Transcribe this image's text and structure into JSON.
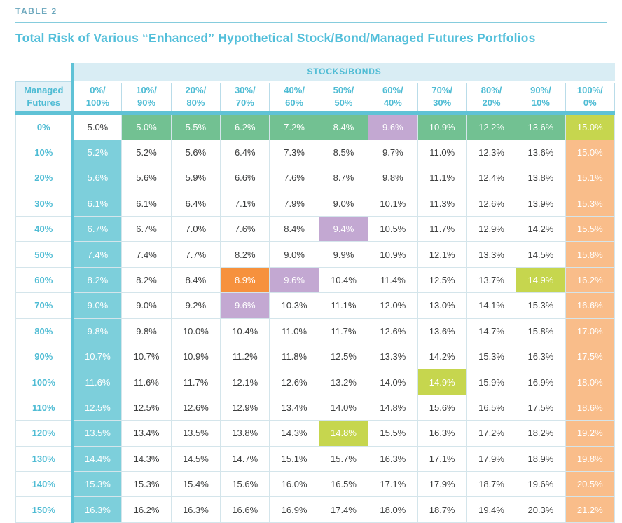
{
  "page": {
    "label": "TABLE 2",
    "title": "Total Risk of Various “Enhanced” Hypothetical Stock/Bond/Managed Futures Portfolios"
  },
  "colors": {
    "accent_teal": "#5fc2d6",
    "header_text": "#4fbcd4",
    "title_text": "#53bfda",
    "band_bg": "#d9edf4",
    "corner_bg": "#e3f1f7",
    "cell_teal": "#7dcfdb",
    "cell_green": "#72c192",
    "cell_lime": "#c6d64e",
    "cell_purple": "#c3a8d2",
    "cell_orange": "#f6913d",
    "cell_peach": "#f9bd8a"
  },
  "table": {
    "group_header": "STOCKS/BONDS",
    "corner_label": [
      "Managed",
      "Futures"
    ],
    "col_headers": [
      [
        "0%/",
        "100%"
      ],
      [
        "10%/",
        "90%"
      ],
      [
        "20%/",
        "80%"
      ],
      [
        "30%/",
        "70%"
      ],
      [
        "40%/",
        "60%"
      ],
      [
        "50%/",
        "50%"
      ],
      [
        "60%/",
        "40%"
      ],
      [
        "70%/",
        "30%"
      ],
      [
        "80%/",
        "20%"
      ],
      [
        "90%/",
        "10%"
      ],
      [
        "100%/",
        "0%"
      ]
    ],
    "rows": [
      {
        "label": "0%",
        "values": [
          "5.0%",
          "5.0%",
          "5.5%",
          "6.2%",
          "7.2%",
          "8.4%",
          "9.6%",
          "10.9%",
          "12.2%",
          "13.6%",
          "15.0%"
        ],
        "styles": [
          "plain",
          "green",
          "green",
          "green",
          "green",
          "green",
          "purple",
          "green",
          "green",
          "green",
          "lime"
        ]
      },
      {
        "label": "10%",
        "values": [
          "5.2%",
          "5.2%",
          "5.6%",
          "6.4%",
          "7.3%",
          "8.5%",
          "9.7%",
          "11.0%",
          "12.3%",
          "13.6%",
          "15.0%"
        ],
        "styles": [
          "teal",
          "plain",
          "plain",
          "plain",
          "plain",
          "plain",
          "plain",
          "plain",
          "plain",
          "plain",
          "peach"
        ]
      },
      {
        "label": "20%",
        "values": [
          "5.6%",
          "5.6%",
          "5.9%",
          "6.6%",
          "7.6%",
          "8.7%",
          "9.8%",
          "11.1%",
          "12.4%",
          "13.8%",
          "15.1%"
        ],
        "styles": [
          "teal",
          "plain",
          "plain",
          "plain",
          "plain",
          "plain",
          "plain",
          "plain",
          "plain",
          "plain",
          "peach"
        ]
      },
      {
        "label": "30%",
        "values": [
          "6.1%",
          "6.1%",
          "6.4%",
          "7.1%",
          "7.9%",
          "9.0%",
          "10.1%",
          "11.3%",
          "12.6%",
          "13.9%",
          "15.3%"
        ],
        "styles": [
          "teal",
          "plain",
          "plain",
          "plain",
          "plain",
          "plain",
          "plain",
          "plain",
          "plain",
          "plain",
          "peach"
        ]
      },
      {
        "label": "40%",
        "values": [
          "6.7%",
          "6.7%",
          "7.0%",
          "7.6%",
          "8.4%",
          "9.4%",
          "10.5%",
          "11.7%",
          "12.9%",
          "14.2%",
          "15.5%"
        ],
        "styles": [
          "teal",
          "plain",
          "plain",
          "plain",
          "plain",
          "purple",
          "plain",
          "plain",
          "plain",
          "plain",
          "peach"
        ]
      },
      {
        "label": "50%",
        "values": [
          "7.4%",
          "7.4%",
          "7.7%",
          "8.2%",
          "9.0%",
          "9.9%",
          "10.9%",
          "12.1%",
          "13.3%",
          "14.5%",
          "15.8%"
        ],
        "styles": [
          "teal",
          "plain",
          "plain",
          "plain",
          "plain",
          "plain",
          "plain",
          "plain",
          "plain",
          "plain",
          "peach"
        ]
      },
      {
        "label": "60%",
        "values": [
          "8.2%",
          "8.2%",
          "8.4%",
          "8.9%",
          "9.6%",
          "10.4%",
          "11.4%",
          "12.5%",
          "13.7%",
          "14.9%",
          "16.2%"
        ],
        "styles": [
          "teal",
          "plain",
          "plain",
          "orange",
          "purple",
          "plain",
          "plain",
          "plain",
          "plain",
          "lime",
          "peach"
        ]
      },
      {
        "label": "70%",
        "values": [
          "9.0%",
          "9.0%",
          "9.2%",
          "9.6%",
          "10.3%",
          "11.1%",
          "12.0%",
          "13.0%",
          "14.1%",
          "15.3%",
          "16.6%"
        ],
        "styles": [
          "teal",
          "plain",
          "plain",
          "purple",
          "plain",
          "plain",
          "plain",
          "plain",
          "plain",
          "plain",
          "peach"
        ]
      },
      {
        "label": "80%",
        "values": [
          "9.8%",
          "9.8%",
          "10.0%",
          "10.4%",
          "11.0%",
          "11.7%",
          "12.6%",
          "13.6%",
          "14.7%",
          "15.8%",
          "17.0%"
        ],
        "styles": [
          "teal",
          "plain",
          "plain",
          "plain",
          "plain",
          "plain",
          "plain",
          "plain",
          "plain",
          "plain",
          "peach"
        ]
      },
      {
        "label": "90%",
        "values": [
          "10.7%",
          "10.7%",
          "10.9%",
          "11.2%",
          "11.8%",
          "12.5%",
          "13.3%",
          "14.2%",
          "15.3%",
          "16.3%",
          "17.5%"
        ],
        "styles": [
          "teal",
          "plain",
          "plain",
          "plain",
          "plain",
          "plain",
          "plain",
          "plain",
          "plain",
          "plain",
          "peach"
        ]
      },
      {
        "label": "100%",
        "values": [
          "11.6%",
          "11.6%",
          "11.7%",
          "12.1%",
          "12.6%",
          "13.2%",
          "14.0%",
          "14.9%",
          "15.9%",
          "16.9%",
          "18.0%"
        ],
        "styles": [
          "teal",
          "plain",
          "plain",
          "plain",
          "plain",
          "plain",
          "plain",
          "lime",
          "plain",
          "plain",
          "peach"
        ]
      },
      {
        "label": "110%",
        "values": [
          "12.5%",
          "12.5%",
          "12.6%",
          "12.9%",
          "13.4%",
          "14.0%",
          "14.8%",
          "15.6%",
          "16.5%",
          "17.5%",
          "18.6%"
        ],
        "styles": [
          "teal",
          "plain",
          "plain",
          "plain",
          "plain",
          "plain",
          "plain",
          "plain",
          "plain",
          "plain",
          "peach"
        ]
      },
      {
        "label": "120%",
        "values": [
          "13.5%",
          "13.4%",
          "13.5%",
          "13.8%",
          "14.3%",
          "14.8%",
          "15.5%",
          "16.3%",
          "17.2%",
          "18.2%",
          "19.2%"
        ],
        "styles": [
          "teal",
          "plain",
          "plain",
          "plain",
          "plain",
          "lime",
          "plain",
          "plain",
          "plain",
          "plain",
          "peach"
        ]
      },
      {
        "label": "130%",
        "values": [
          "14.4%",
          "14.3%",
          "14.5%",
          "14.7%",
          "15.1%",
          "15.7%",
          "16.3%",
          "17.1%",
          "17.9%",
          "18.9%",
          "19.8%"
        ],
        "styles": [
          "teal",
          "plain",
          "plain",
          "plain",
          "plain",
          "plain",
          "plain",
          "plain",
          "plain",
          "plain",
          "peach"
        ]
      },
      {
        "label": "140%",
        "values": [
          "15.3%",
          "15.3%",
          "15.4%",
          "15.6%",
          "16.0%",
          "16.5%",
          "17.1%",
          "17.9%",
          "18.7%",
          "19.6%",
          "20.5%"
        ],
        "styles": [
          "teal",
          "plain",
          "plain",
          "plain",
          "plain",
          "plain",
          "plain",
          "plain",
          "plain",
          "plain",
          "peach"
        ]
      },
      {
        "label": "150%",
        "values": [
          "16.3%",
          "16.2%",
          "16.3%",
          "16.6%",
          "16.9%",
          "17.4%",
          "18.0%",
          "18.7%",
          "19.4%",
          "20.3%",
          "21.2%"
        ],
        "styles": [
          "teal",
          "plain",
          "plain",
          "plain",
          "plain",
          "plain",
          "plain",
          "plain",
          "plain",
          "plain",
          "peach"
        ]
      }
    ]
  }
}
